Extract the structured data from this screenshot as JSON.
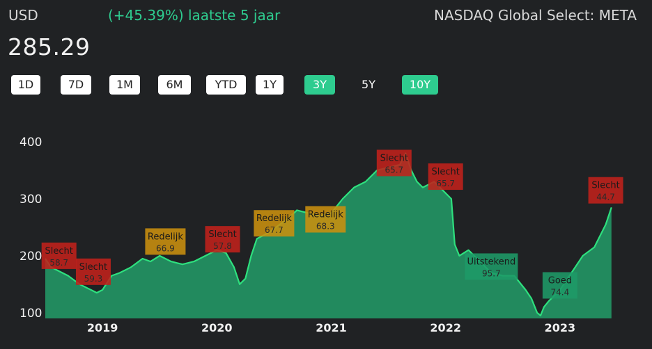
{
  "header": {
    "currency": "USD",
    "change": "(+45.39%) laatste 5 jaar",
    "exchange": "NASDAQ Global Select: META",
    "price": "285.29"
  },
  "ranges": [
    {
      "label": "1D",
      "state": "normal"
    },
    {
      "label": "7D",
      "state": "normal"
    },
    {
      "label": "1M",
      "state": "normal"
    },
    {
      "label": "6M",
      "state": "normal"
    },
    {
      "label": "YTD",
      "state": "normal"
    },
    {
      "label": "1Y",
      "state": "normal"
    },
    {
      "label": "3Y",
      "state": "active"
    },
    {
      "label": "5Y",
      "state": "plain"
    },
    {
      "label": "10Y",
      "state": "active"
    }
  ],
  "colors": {
    "line": "#2ee07e",
    "area": "#228a5e",
    "accent": "#2ecc8f",
    "slecht": "#c0211b",
    "redelijk": "#c9900f",
    "goed": "#1e9a68",
    "uitstekend": "#1e9a68"
  },
  "chart_data": {
    "type": "area",
    "y_ticks": [
      100,
      200,
      300,
      400
    ],
    "x_ticks": [
      {
        "label": "2019",
        "x": 2019.0
      },
      {
        "label": "2020",
        "x": 2020.0
      },
      {
        "label": "2021",
        "x": 2021.0
      },
      {
        "label": "2022",
        "x": 2022.0
      },
      {
        "label": "2023",
        "x": 2023.0
      }
    ],
    "ylim": [
      90,
      405
    ],
    "xlim": [
      2018.5,
      2023.5
    ],
    "series": [
      {
        "x": [
          2018.5,
          2018.55,
          2018.6,
          2018.7,
          2018.8,
          2018.9,
          2018.95,
          2019.0,
          2019.08,
          2019.15,
          2019.25,
          2019.35,
          2019.42,
          2019.5,
          2019.6,
          2019.7,
          2019.8,
          2019.9,
          2020.0,
          2020.08,
          2020.15,
          2020.2,
          2020.25,
          2020.3,
          2020.35,
          2020.45,
          2020.55,
          2020.62,
          2020.7,
          2020.8,
          2020.9,
          2021.0,
          2021.1,
          2021.2,
          2021.3,
          2021.4,
          2021.5,
          2021.6,
          2021.65,
          2021.7,
          2021.75,
          2021.8,
          2021.9,
          2022.0,
          2022.05,
          2022.08,
          2022.12,
          2022.2,
          2022.25,
          2022.3,
          2022.4,
          2022.5,
          2022.6,
          2022.7,
          2022.75,
          2022.8,
          2022.83,
          2022.86,
          2022.9,
          2023.0,
          2023.1,
          2023.2,
          2023.3,
          2023.4,
          2023.45
        ],
        "y": [
          195,
          180,
          175,
          165,
          150,
          140,
          135,
          140,
          165,
          170,
          180,
          195,
          190,
          200,
          190,
          185,
          190,
          200,
          210,
          205,
          180,
          150,
          160,
          200,
          230,
          240,
          255,
          265,
          280,
          275,
          270,
          275,
          300,
          320,
          330,
          350,
          355,
          360,
          380,
          350,
          330,
          320,
          330,
          310,
          300,
          220,
          200,
          210,
          200,
          190,
          170,
          165,
          165,
          140,
          125,
          100,
          95,
          110,
          120,
          140,
          170,
          200,
          215,
          255,
          285
        ]
      }
    ],
    "annotations": [
      {
        "label": "Slecht",
        "value": "58.7",
        "x": 2018.62,
        "y": 200,
        "rating": "slecht"
      },
      {
        "label": "Slecht",
        "value": "59.3",
        "x": 2018.92,
        "y": 172,
        "rating": "slecht"
      },
      {
        "label": "Redelijk",
        "value": "66.9",
        "x": 2019.55,
        "y": 225,
        "rating": "redelijk"
      },
      {
        "label": "Slecht",
        "value": "57.8",
        "x": 2020.05,
        "y": 229,
        "rating": "slecht"
      },
      {
        "label": "Redelijk",
        "value": "67.7",
        "x": 2020.5,
        "y": 257,
        "rating": "redelijk"
      },
      {
        "label": "Redelijk",
        "value": "68.3",
        "x": 2020.95,
        "y": 264,
        "rating": "redelijk"
      },
      {
        "label": "Slecht",
        "value": "65.7",
        "x": 2021.55,
        "y": 363,
        "rating": "slecht"
      },
      {
        "label": "Slecht",
        "value": "65.7",
        "x": 2022.0,
        "y": 339,
        "rating": "slecht"
      },
      {
        "label": "Uitstekend",
        "value": "95.7",
        "x": 2022.4,
        "y": 181,
        "rating": "uitstekend"
      },
      {
        "label": "Goed",
        "value": "74.4",
        "x": 2023.0,
        "y": 148,
        "rating": "goed"
      },
      {
        "label": "Slecht",
        "value": "44.7",
        "x": 2023.4,
        "y": 315,
        "rating": "slecht"
      }
    ]
  }
}
